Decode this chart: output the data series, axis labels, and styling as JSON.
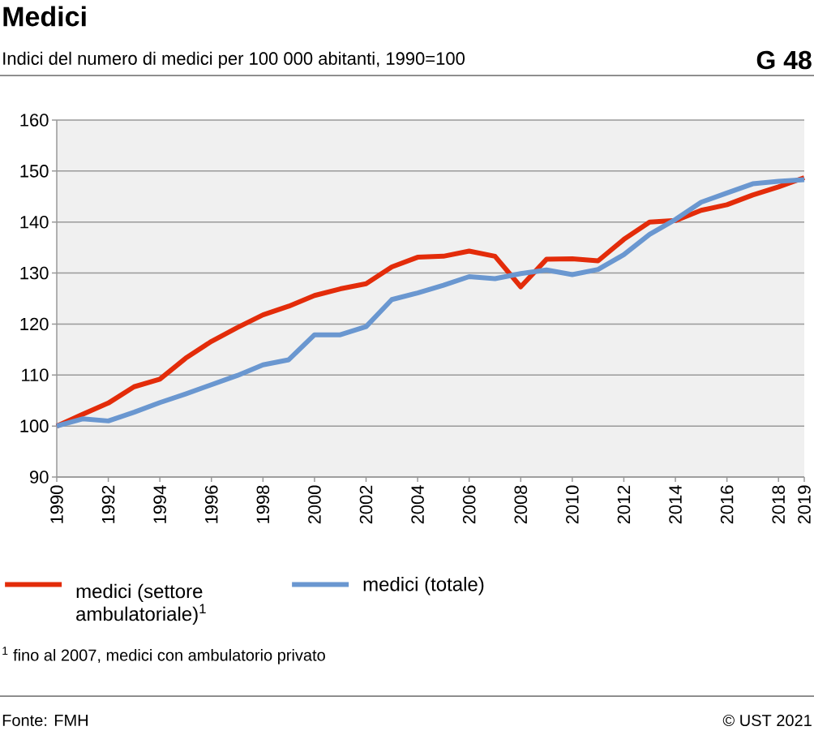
{
  "chart_data": {
    "type": "line",
    "title": "Medici",
    "subtitle": "Indici del numero di medici per 100 000 abitanti, 1990=100",
    "x": [
      1990,
      1991,
      1992,
      1993,
      1994,
      1995,
      1996,
      1997,
      1998,
      1999,
      2000,
      2001,
      2002,
      2003,
      2004,
      2005,
      2006,
      2007,
      2008,
      2009,
      2010,
      2011,
      2012,
      2013,
      2014,
      2015,
      2016,
      2017,
      2018,
      2019
    ],
    "series": [
      {
        "name": "medici (settore ambulatoriale)$^{1}$",
        "color": "#e32c0a",
        "values": [
          100,
          102.3,
          104.5,
          107.7,
          109.2,
          113.3,
          116.6,
          119.3,
          121.8,
          123.5,
          125.6,
          126.9,
          127.9,
          131.2,
          133.1,
          133.3,
          134.3,
          133.3,
          127.3,
          132.7,
          132.8,
          132.4,
          136.6,
          140.0,
          140.3,
          142.3,
          143.4,
          145.3,
          146.9,
          148.7
        ]
      },
      {
        "name": "medici (totale)",
        "color": "#6a97d0",
        "values": [
          100,
          101.4,
          101.0,
          102.7,
          104.6,
          106.3,
          108.1,
          109.9,
          112.0,
          113.0,
          117.9,
          117.9,
          119.5,
          124.8,
          126.1,
          127.6,
          129.3,
          128.9,
          129.9,
          130.6,
          129.7,
          130.7,
          133.6,
          137.6,
          140.5,
          143.9,
          145.7,
          147.5,
          148.0,
          148.3
        ]
      }
    ],
    "xlim": [
      1990,
      2019
    ],
    "xticks": [
      1990,
      1992,
      1994,
      1996,
      1998,
      2000,
      2002,
      2004,
      2006,
      2008,
      2010,
      2012,
      2014,
      2016,
      2018,
      2019
    ],
    "ylim": [
      90,
      160
    ],
    "yticks": [
      90,
      100,
      110,
      120,
      130,
      140,
      150,
      160
    ],
    "grid": "y",
    "legend": "bottom",
    "line_style": "solid",
    "annotations": [
      "G 48",
      "$^{1}$ fino al 2007, medici con ambulatorio privato",
      "Fonte: FMH",
      "© UST 2021"
    ]
  }
}
